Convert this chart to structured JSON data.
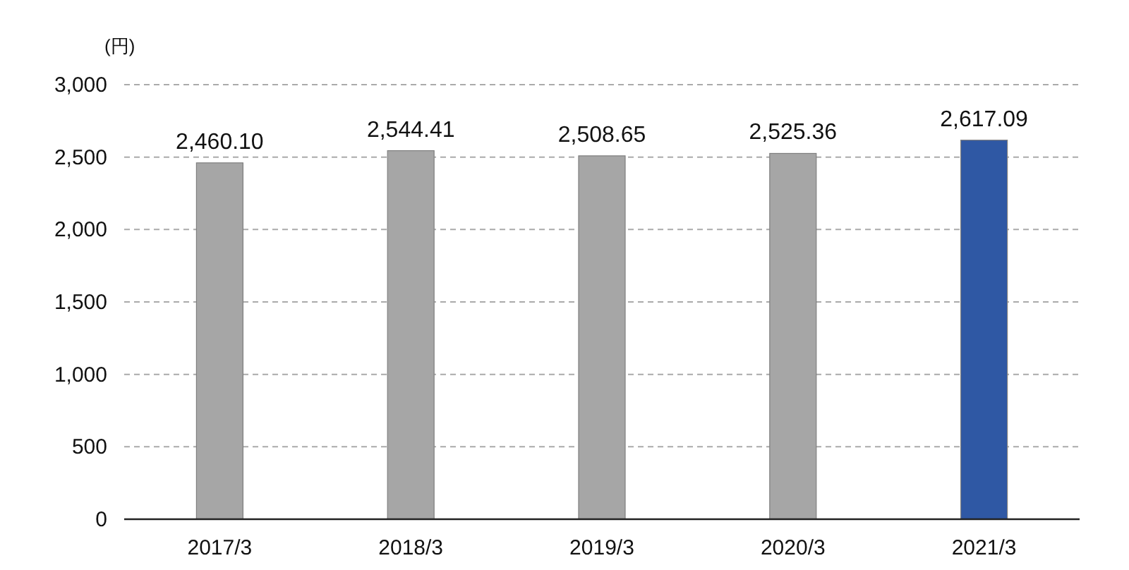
{
  "chart_data": {
    "type": "bar",
    "ylabel": "(円)",
    "categories": [
      "2017/3",
      "2018/3",
      "2019/3",
      "2020/3",
      "2021/3"
    ],
    "values": [
      2460.1,
      2544.41,
      2508.65,
      2525.36,
      2617.09
    ],
    "value_labels": [
      "2,460.10",
      "2,544.41",
      "2,508.65",
      "2,525.36",
      "2,617.09"
    ],
    "colors": [
      "#a6a6a6",
      "#a6a6a6",
      "#a6a6a6",
      "#a6a6a6",
      "#2f58a4"
    ],
    "ylim": [
      0,
      3000
    ],
    "yticks": [
      0,
      500,
      {
        "value": 1000,
        "label": "1,000"
      },
      {
        "value": 1500,
        "label": "1,500"
      },
      {
        "value": 2000,
        "label": "2,000"
      },
      {
        "value": 2500,
        "label": "2,500"
      },
      {
        "value": 3000,
        "label": "3,000"
      }
    ],
    "grid": "y"
  }
}
